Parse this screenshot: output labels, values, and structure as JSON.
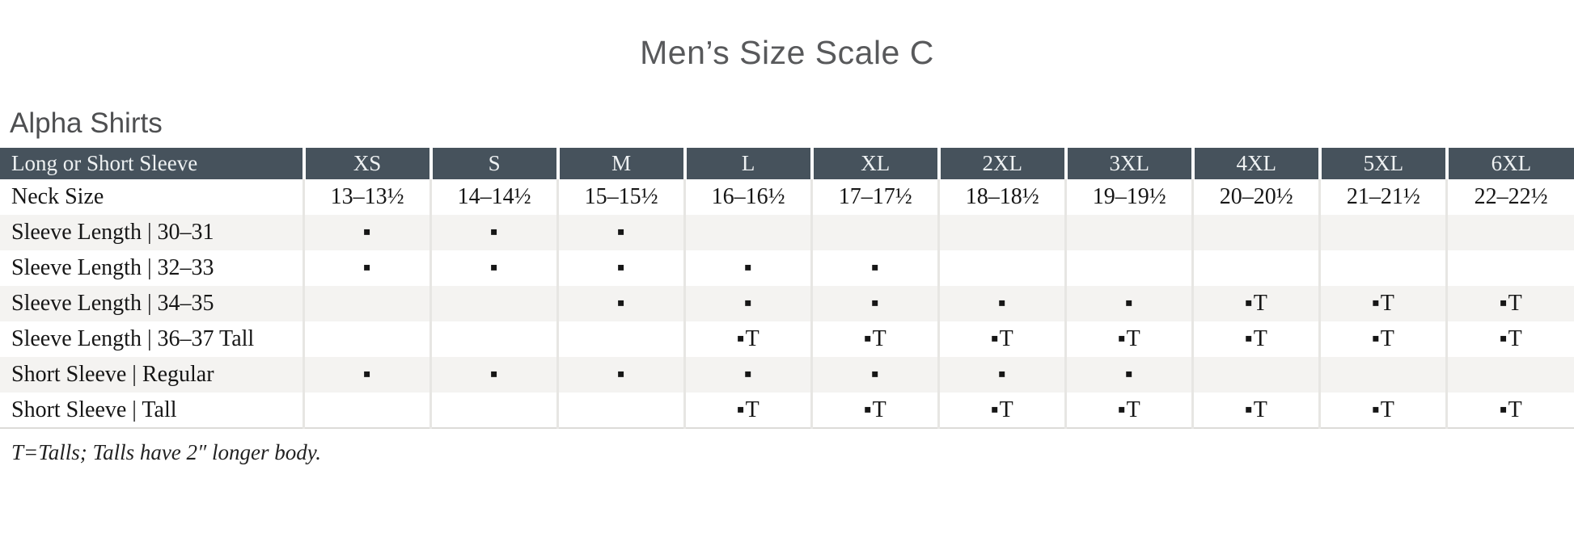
{
  "page": {
    "title": "Men’s Size Scale C",
    "section_heading": "Alpha Shirts",
    "footnote": "T=Talls; Talls have 2″ longer body."
  },
  "colors": {
    "header_bg": "#46525c",
    "header_text": "#eef1f2",
    "row_shade": "#f4f3f1",
    "divider": "#e7e6e3",
    "title_text": "#58595b",
    "body_text": "#161616"
  },
  "chart_data": {
    "type": "table",
    "columns": [
      "Long or Short Sleeve",
      "XS",
      "S",
      "M",
      "L",
      "XL",
      "2XL",
      "3XL",
      "4XL",
      "5XL",
      "6XL"
    ],
    "rows": [
      {
        "label": "Neck Size",
        "cells": [
          "13–13½",
          "14–14½",
          "15–15½",
          "16–16½",
          "17–17½",
          "18–18½",
          "19–19½",
          "20–20½",
          "21–21½",
          "22–22½"
        ]
      },
      {
        "label": "Sleeve Length | 30–31",
        "cells": [
          "▪",
          "▪",
          "▪",
          "",
          "",
          "",
          "",
          "",
          "",
          ""
        ]
      },
      {
        "label": "Sleeve Length | 32–33",
        "cells": [
          "▪",
          "▪",
          "▪",
          "▪",
          "▪",
          "",
          "",
          "",
          "",
          ""
        ]
      },
      {
        "label": "Sleeve Length | 34–35",
        "cells": [
          "",
          "",
          "▪",
          "▪",
          "▪",
          "▪",
          "▪",
          "▪T",
          "▪T",
          "▪T"
        ]
      },
      {
        "label": "Sleeve Length | 36–37 Tall",
        "cells": [
          "",
          "",
          "",
          "▪T",
          "▪T",
          "▪T",
          "▪T",
          "▪T",
          "▪T",
          "▪T"
        ]
      },
      {
        "label": "Short Sleeve | Regular",
        "cells": [
          "▪",
          "▪",
          "▪",
          "▪",
          "▪",
          "▪",
          "▪",
          "",
          "",
          ""
        ]
      },
      {
        "label": "Short Sleeve | Tall",
        "cells": [
          "",
          "",
          "",
          "▪T",
          "▪T",
          "▪T",
          "▪T",
          "▪T",
          "▪T",
          "▪T"
        ]
      }
    ]
  }
}
